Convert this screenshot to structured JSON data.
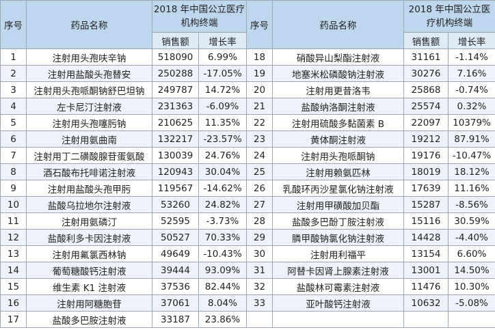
{
  "table": {
    "header": {
      "no": "序号",
      "name": "药品名称",
      "group": "2018 年中国公立医疗机构终端",
      "sales": "销售额",
      "growth": "增长率"
    },
    "left_rows": [
      [
        1,
        "注射用头孢呋辛钠",
        518090,
        "6.99%"
      ],
      [
        2,
        "注射用盐酸头孢替安",
        250288,
        "-17.05%"
      ],
      [
        3,
        "注射用头孢哌酮钠舒巴坦钠",
        249787,
        "14.72%"
      ],
      [
        4,
        "左卡尼汀注射液",
        231363,
        "-6.09%"
      ],
      [
        5,
        "注射用头孢噻肟钠",
        210625,
        "11.35%"
      ],
      [
        6,
        "注射用氨曲南",
        132217,
        "-23.57%"
      ],
      [
        7,
        "注射用丁二磺酸腺苷蛋氨酸",
        130039,
        "24.76%"
      ],
      [
        8,
        "酒石酸布托啡诺注射液",
        120943,
        "30.04%"
      ],
      [
        9,
        "注射用盐酸头孢甲肟",
        119567,
        "-14.62%"
      ],
      [
        10,
        "盐酸乌拉地尔注射液",
        53260,
        "24.82%"
      ],
      [
        11,
        "注射用氨磷汀",
        52595,
        "-3.73%"
      ],
      [
        12,
        "盐酸利多卡因注射液",
        50527,
        "70.33%"
      ],
      [
        13,
        "注射用氟氯西林钠",
        49649,
        "-10.43%"
      ],
      [
        14,
        "葡萄糖酸钙注射液",
        39444,
        "93.09%"
      ],
      [
        15,
        "维生素 K1 注射液",
        37536,
        "82.44%"
      ],
      [
        16,
        "注射用阿糖胞苷",
        37061,
        "8.04%"
      ],
      [
        17,
        "盐酸多巴胺注射液",
        33187,
        "23.86%"
      ]
    ],
    "right_rows": [
      [
        18,
        "硝酸异山梨酯注射液",
        31161,
        "-1.14%"
      ],
      [
        19,
        "地塞米松磷酸钠注射液",
        30276,
        "7.16%"
      ],
      [
        20,
        "注射用更昔洛韦",
        25868,
        "-0.74%"
      ],
      [
        21,
        "盐酸纳洛酮注射液",
        25574,
        "0.32%"
      ],
      [
        22,
        "注射用硫酸多黏菌素 B",
        22097,
        "10379%"
      ],
      [
        23,
        "黄体酮注射液",
        19212,
        "87.91%"
      ],
      [
        24,
        "注射用头孢哌酮钠",
        19176,
        "-10.47%"
      ],
      [
        25,
        "注射用赖氨匹林",
        18019,
        "18.12%"
      ],
      [
        26,
        "乳酸环丙沙星氯化钠注射液",
        17639,
        "11.16%"
      ],
      [
        27,
        "注射用甲磺酸加贝酯",
        15287,
        "-8.56%"
      ],
      [
        28,
        "盐酸多巴酚丁胺注射液",
        15116,
        "30.59%"
      ],
      [
        29,
        "膦甲酸钠氯化钠注射液",
        14428,
        "-4.40%"
      ],
      [
        30,
        "注射用利福平",
        13154,
        "6.60%"
      ],
      [
        31,
        "阿替卡因肾上腺素注射液",
        13001,
        "14.50%"
      ],
      [
        32,
        "盐酸林可霉素注射液",
        11476,
        "10.30%"
      ],
      [
        33,
        "亚叶酸钙注射液",
        10632,
        "-5.08%"
      ]
    ]
  }
}
